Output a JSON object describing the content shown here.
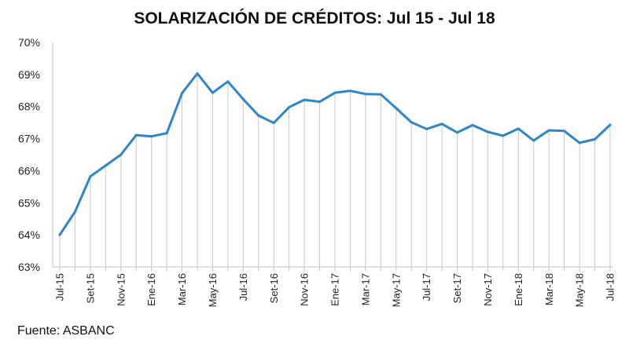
{
  "chart_data": {
    "type": "line",
    "title": "SOLARIZACIÓN DE CRÉDITOS: Jul 15 - Jul 18",
    "source": "Fuente: ASBANC",
    "xlabel": "",
    "ylabel": "",
    "ylim": [
      63,
      70
    ],
    "y_ticks": [
      "63%",
      "64%",
      "65%",
      "66%",
      "67%",
      "68%",
      "69%",
      "70%"
    ],
    "grid": "vertical",
    "color": "#2e86c8",
    "categories": [
      "Jul-15",
      "Ago-15",
      "Set-15",
      "Oct-15",
      "Nov-15",
      "Dic-15",
      "Ene-16",
      "Feb-16",
      "Mar-16",
      "Abr-16",
      "May-16",
      "Jun-16",
      "Jul-16",
      "Ago-16",
      "Set-16",
      "Oct-16",
      "Nov-16",
      "Dic-16",
      "Ene-17",
      "Feb-17",
      "Mar-17",
      "Abr-17",
      "May-17",
      "Jun-17",
      "Jul-17",
      "Ago-17",
      "Set-17",
      "Oct-17",
      "Nov-17",
      "Dic-17",
      "Ene-18",
      "Feb-18",
      "Mar-18",
      "Abr-18",
      "May-18",
      "Jun-18",
      "Jul-18"
    ],
    "x_tick_labels": [
      "Jul-15",
      "Set-15",
      "Nov-15",
      "Ene-16",
      "Mar-16",
      "May-16",
      "Jul-16",
      "Set-16",
      "Nov-16",
      "Ene-17",
      "Mar-17",
      "May-17",
      "Jul-17",
      "Set-17",
      "Nov-17",
      "Ene-18",
      "Mar-18",
      "May-18",
      "Jul-18"
    ],
    "values": [
      64.0,
      64.72,
      65.82,
      66.16,
      66.5,
      67.11,
      67.07,
      67.17,
      68.42,
      69.03,
      68.43,
      68.78,
      68.23,
      67.72,
      67.49,
      67.98,
      68.21,
      68.15,
      68.43,
      68.49,
      68.39,
      68.38,
      67.95,
      67.51,
      67.3,
      67.46,
      67.19,
      67.42,
      67.21,
      67.09,
      67.31,
      66.94,
      67.26,
      67.24,
      66.87,
      66.98,
      67.43
    ]
  }
}
